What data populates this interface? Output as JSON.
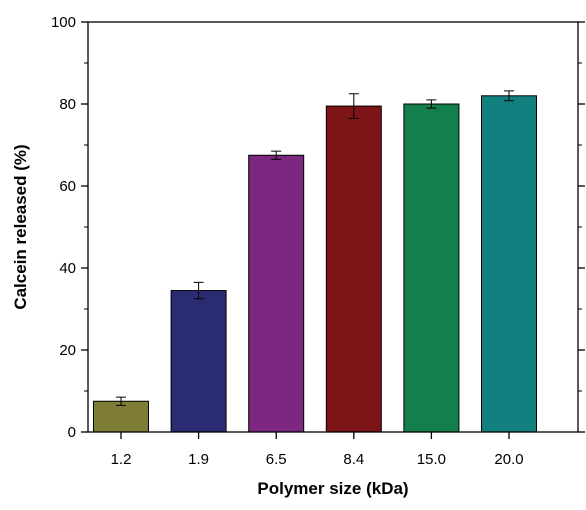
{
  "chart_data": {
    "type": "bar",
    "title": "",
    "xlabel": "Polymer size (kDa)",
    "ylabel": "Calcein released (%)",
    "categories": [
      "1.2",
      "1.9",
      "6.5",
      "8.4",
      "15.0",
      "20.0"
    ],
    "values": [
      7.5,
      34.5,
      67.5,
      79.5,
      80.0,
      82.0
    ],
    "errors": [
      1.0,
      2.0,
      1.0,
      3.0,
      1.0,
      1.2
    ],
    "colors": [
      "#7d7d35",
      "#2b2b72",
      "#7d2880",
      "#7d1518",
      "#13804c",
      "#12807e"
    ],
    "ylim": [
      0,
      100
    ],
    "yticks": [
      0,
      20,
      40,
      60,
      80,
      100
    ],
    "grid": false,
    "legend": "none"
  }
}
